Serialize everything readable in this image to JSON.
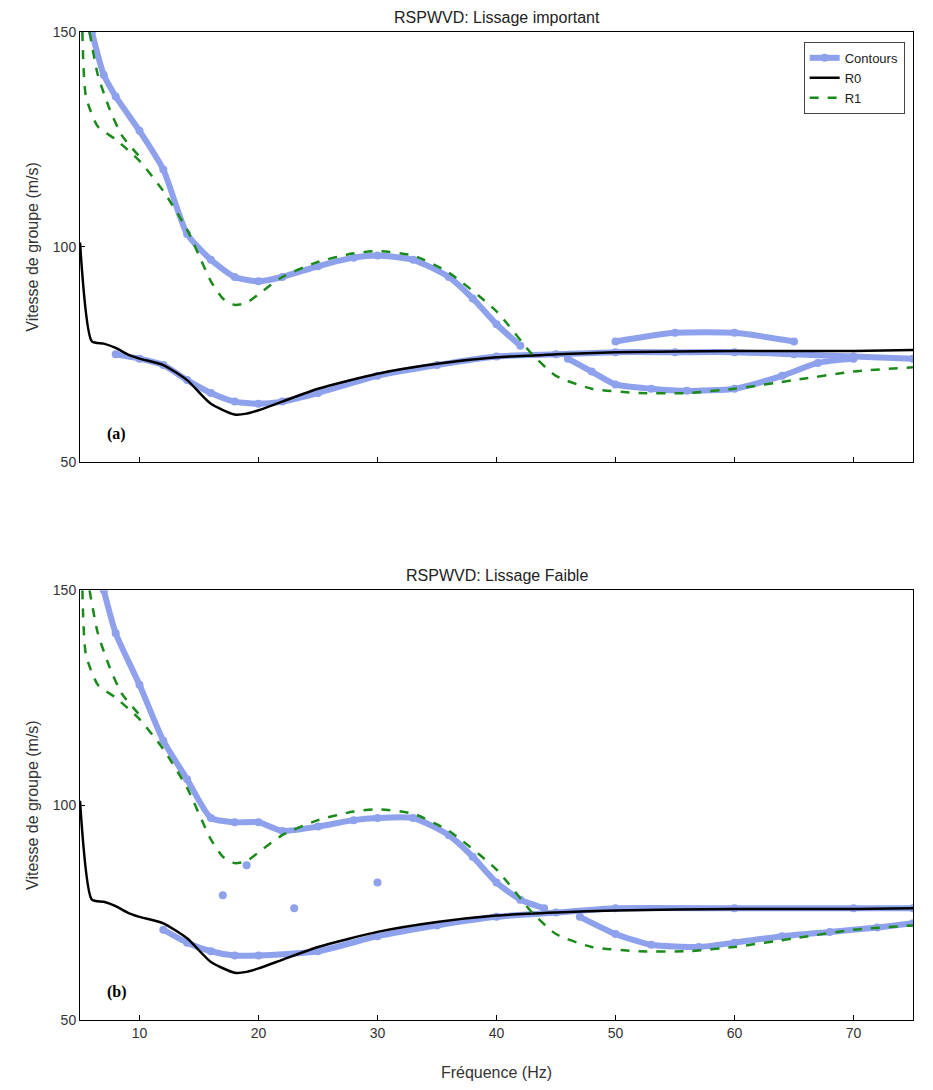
{
  "chart_data": [
    {
      "type": "line",
      "title": "RSPWVD: Lissage important",
      "ylabel": "Vitesse de groupe (m/s)",
      "annotations": [
        "(a)"
      ],
      "xlim": [
        5,
        75
      ],
      "xticks": [
        10,
        20,
        30,
        40,
        50,
        60,
        70
      ],
      "ylim": [
        50,
        150
      ],
      "yticks": [
        50,
        100,
        150
      ],
      "grid": false,
      "legend": "upper right",
      "tick_labels": "y",
      "series": [
        {
          "name": "Contours",
          "color": "#3355dd",
          "marker": "circle",
          "line_style": "solid",
          "x": [
            6,
            7,
            8,
            10,
            12,
            14,
            16,
            18,
            20,
            22,
            25,
            28,
            30,
            33,
            36,
            38,
            40,
            42,
            null,
            8,
            10,
            12,
            14,
            16,
            18,
            20,
            22,
            25,
            30,
            35,
            40,
            45,
            50,
            55,
            60,
            65,
            70,
            75,
            null,
            46,
            48,
            50,
            53,
            56,
            60,
            64,
            67,
            70,
            null,
            50,
            55,
            60,
            65
          ],
          "values": [
            150,
            140,
            135,
            127,
            118,
            103,
            97,
            93,
            92,
            93,
            95.5,
            97.5,
            98,
            97,
            93,
            88,
            82,
            77,
            null,
            75,
            74,
            72.5,
            69,
            66,
            64,
            63.5,
            64,
            66,
            70,
            72.5,
            74.5,
            75,
            75.5,
            75.5,
            75.5,
            75,
            74.5,
            74,
            null,
            74,
            71,
            68,
            67,
            66.5,
            67,
            70,
            73,
            74,
            null,
            78,
            80,
            80,
            78
          ]
        },
        {
          "name": "R0",
          "color": "#000000",
          "line_style": "solid",
          "x": [
            5,
            6,
            7,
            8,
            9,
            10,
            12,
            14,
            16,
            18,
            19,
            20,
            22,
            25,
            30,
            35,
            40,
            45,
            50,
            60,
            70,
            75
          ],
          "values": [
            101,
            78,
            77.5,
            76.5,
            75,
            74,
            72.5,
            69,
            63.5,
            61,
            61.2,
            62,
            64,
            67,
            70.5,
            72.8,
            74.3,
            75,
            75.5,
            75.8,
            75.8,
            76
          ]
        },
        {
          "name": "R1",
          "color": "#1a8a1a",
          "line_style": "dash",
          "x": [
            5.2,
            5.5,
            6.5,
            8,
            10,
            12,
            14,
            16,
            17,
            18,
            19,
            20,
            22,
            25,
            28,
            30,
            33,
            36,
            40,
            43,
            45,
            48,
            52,
            56,
            60,
            65,
            70,
            75,
            null,
            5.8,
            6.5,
            7.5,
            8.5,
            10
          ],
          "values": [
            150,
            135,
            128,
            125,
            120,
            113,
            104,
            92,
            88,
            86.5,
            87,
            89,
            93,
            96.5,
            98.5,
            99,
            98,
            94,
            85,
            75,
            70,
            67,
            66,
            66,
            67,
            69,
            71,
            72,
            null,
            150,
            140,
            132,
            126,
            121
          ]
        }
      ]
    },
    {
      "type": "line",
      "title": "RSPWVD: Lissage Faible",
      "xlabel": "Fréquence (Hz)",
      "ylabel": "Vitesse de groupe (m/s)",
      "annotations": [
        "(b)"
      ],
      "xlim": [
        5,
        75
      ],
      "xticks": [
        10,
        20,
        30,
        40,
        50,
        60,
        70
      ],
      "ylim": [
        50,
        150
      ],
      "yticks": [
        50,
        100,
        150
      ],
      "grid": false,
      "series": [
        {
          "name": "Contours",
          "color": "#3355dd",
          "marker": "circle",
          "line_style": "solid",
          "x": [
            7,
            8,
            10,
            12,
            14,
            16,
            18,
            20,
            22,
            25,
            28,
            30,
            33,
            36,
            38,
            40,
            42,
            44,
            null,
            19,
            null,
            17,
            null,
            23,
            null,
            30,
            null,
            12,
            14,
            16,
            18,
            20,
            25,
            30,
            35,
            40,
            45,
            50,
            60,
            70,
            75,
            null,
            47,
            50,
            53,
            57,
            60,
            64,
            68,
            72,
            75
          ],
          "values": [
            150,
            140,
            128,
            115,
            106,
            97,
            96,
            96,
            94,
            95,
            96.5,
            97,
            97,
            93,
            88,
            82,
            78,
            76,
            null,
            86,
            null,
            79,
            null,
            76,
            null,
            82,
            null,
            71,
            68,
            66,
            65,
            65,
            66,
            69.5,
            72,
            74,
            75,
            76,
            76,
            76,
            76,
            null,
            74,
            70,
            67.5,
            67,
            68,
            69.5,
            70.5,
            71.5,
            72.5
          ]
        },
        {
          "name": "R0",
          "color": "#000000",
          "line_style": "solid",
          "x": [
            5,
            6,
            7,
            8,
            9,
            10,
            12,
            14,
            16,
            18,
            19,
            20,
            22,
            25,
            30,
            35,
            40,
            45,
            50,
            60,
            70,
            75
          ],
          "values": [
            101,
            78,
            77.5,
            76.5,
            75,
            74,
            72.5,
            69,
            63.5,
            61,
            61.2,
            62,
            64,
            67,
            70.5,
            72.8,
            74.3,
            75,
            75.5,
            75.8,
            75.8,
            76
          ]
        },
        {
          "name": "R1",
          "color": "#1a8a1a",
          "line_style": "dash",
          "x": [
            5.2,
            5.5,
            6.5,
            8,
            10,
            12,
            14,
            16,
            17,
            18,
            19,
            20,
            22,
            25,
            28,
            30,
            33,
            36,
            40,
            43,
            45,
            48,
            52,
            56,
            60,
            65,
            70,
            75,
            null,
            5.8,
            6.5,
            7.5,
            8.5,
            10
          ],
          "values": [
            150,
            135,
            128,
            125,
            120,
            113,
            104,
            92,
            88,
            86.5,
            87,
            89,
            93,
            96.5,
            98.5,
            99,
            98,
            94,
            85,
            75,
            70,
            67,
            66,
            66,
            67,
            69,
            71,
            72,
            null,
            150,
            140,
            132,
            126,
            121
          ]
        }
      ]
    }
  ]
}
